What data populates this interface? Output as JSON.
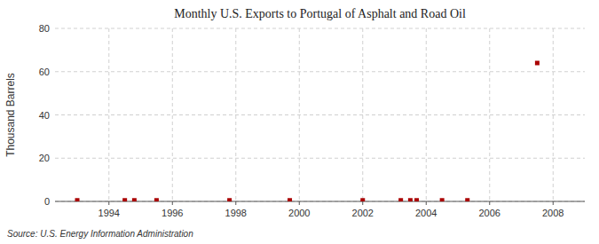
{
  "chart_data": {
    "type": "scatter",
    "title": "Monthly U.S. Exports to Portugal of Asphalt and Road Oil",
    "y_label": "Thousand Barrels",
    "annotation": "Source: U.S. Energy Information Administration",
    "x": [
      1993.0,
      1994.5,
      1994.8,
      1995.5,
      1997.8,
      1999.7,
      2002.0,
      2003.2,
      2003.5,
      2003.7,
      2004.5,
      2005.3,
      2007.5
    ],
    "values": [
      0.5,
      0.5,
      0.5,
      0.5,
      0.5,
      0.5,
      0.5,
      0.5,
      0.5,
      0.5,
      0.5,
      0.5,
      64
    ],
    "color": "#aa0000",
    "marker": "square",
    "xlim": [
      1992.3,
      2009.0
    ],
    "ylim": [
      0,
      80
    ],
    "xticks": [
      1994,
      1996,
      1998,
      2000,
      2002,
      2004,
      2006,
      2008
    ],
    "yticks": [
      0,
      20,
      40,
      60,
      80
    ],
    "grid": true
  }
}
